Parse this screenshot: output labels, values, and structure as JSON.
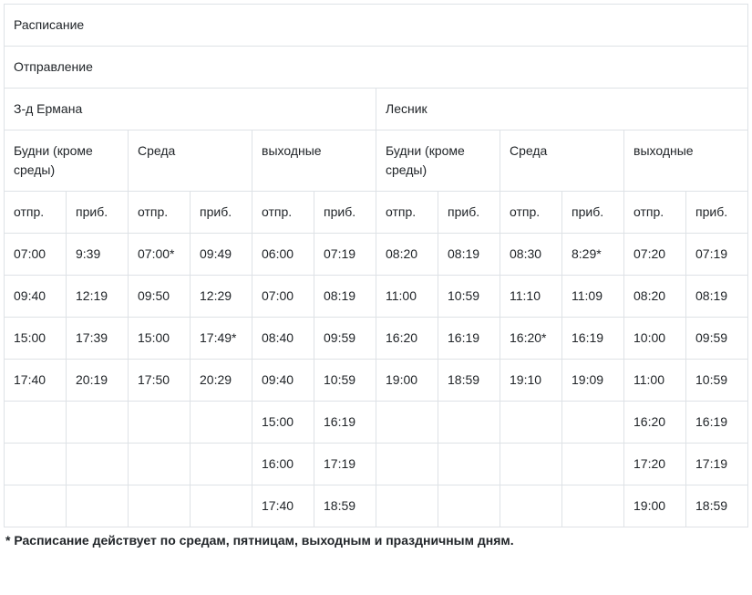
{
  "type": "table",
  "columns_count": 12,
  "colors": {
    "border": "#dee2e6",
    "text": "#212529",
    "background": "#ffffff"
  },
  "typography": {
    "cell_fontsize": 14,
    "footnote_fontsize": 14,
    "footnote_fontweight": 700,
    "cell_fontweight": 400,
    "font_family": "Arial, Helvetica, sans-serif",
    "line_height": 1.5
  },
  "padding": {
    "cell_vertical": 12,
    "cell_horizontal": 10
  },
  "header": {
    "title": "Расписание",
    "subtitle": "Отправление",
    "direction_a": "З-д Ермана",
    "direction_b": "Лесник",
    "daytype_weekdays": "Будни (кроме среды)",
    "daytype_wed": "Среда",
    "daytype_weekend": "выходные",
    "col_dep": "отпр.",
    "col_arr": "приб."
  },
  "rows": [
    {
      "c": [
        "07:00",
        "9:39",
        "07:00*",
        "09:49",
        "06:00",
        "07:19",
        "08:20",
        "08:19",
        "08:30",
        "8:29*",
        "07:20",
        "07:19"
      ]
    },
    {
      "c": [
        "09:40",
        "12:19",
        "09:50",
        "12:29",
        "07:00",
        "08:19",
        "11:00",
        "10:59",
        "11:10",
        "11:09",
        "08:20",
        "08:19"
      ]
    },
    {
      "c": [
        "15:00",
        "17:39",
        "15:00",
        "17:49*",
        "08:40",
        "09:59",
        "16:20",
        "16:19",
        "16:20*",
        "16:19",
        "10:00",
        "09:59"
      ]
    },
    {
      "c": [
        "17:40",
        "20:19",
        "17:50",
        "20:29",
        "09:40",
        "10:59",
        "19:00",
        "18:59",
        "19:10",
        "19:09",
        "11:00",
        "10:59"
      ]
    },
    {
      "c": [
        "",
        "",
        "",
        "",
        "15:00",
        "16:19",
        "",
        "",
        "",
        "",
        "16:20",
        "16:19"
      ]
    },
    {
      "c": [
        "",
        "",
        "",
        "",
        "16:00",
        "17:19",
        "",
        "",
        "",
        "",
        "17:20",
        "17:19"
      ]
    },
    {
      "c": [
        "",
        "",
        "",
        "",
        "17:40",
        "18:59",
        "",
        "",
        "",
        "",
        "19:00",
        "18:59"
      ]
    }
  ],
  "footnote": "* Расписание действует по средам, пятницам, выходным и праздничным дням."
}
